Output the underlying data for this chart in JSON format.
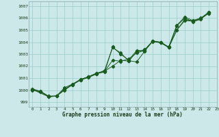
{
  "xlabel": "Graphe pression niveau de la mer (hPa)",
  "bg_color": "#cce8e8",
  "grid_color": "#99cccc",
  "line_color": "#1a5c20",
  "xlim": [
    -0.5,
    23
  ],
  "ylim": [
    998.6,
    1007.4
  ],
  "xticks": [
    0,
    1,
    2,
    3,
    4,
    5,
    6,
    7,
    8,
    9,
    10,
    11,
    12,
    13,
    14,
    15,
    16,
    17,
    18,
    19,
    20,
    21,
    22,
    23
  ],
  "yticks": [
    999,
    1000,
    1001,
    1002,
    1003,
    1004,
    1005,
    1006,
    1007
  ],
  "series1_x": [
    0,
    1,
    2,
    3,
    4,
    5,
    6,
    7,
    8,
    9,
    10,
    11,
    12,
    13,
    14,
    15,
    16,
    17,
    18,
    19,
    20,
    21,
    22
  ],
  "series1_y": [
    1000.1,
    999.9,
    999.5,
    999.5,
    1000.2,
    1000.5,
    1000.9,
    1001.1,
    1001.4,
    1001.5,
    1003.6,
    1003.0,
    1002.5,
    1003.3,
    1003.3,
    1004.1,
    1004.0,
    1003.6,
    1005.4,
    1006.1,
    1005.8,
    1006.0,
    1006.5
  ],
  "series2_x": [
    0,
    1,
    2,
    3,
    4,
    5,
    6,
    7,
    8,
    9,
    10,
    11,
    12,
    13,
    14,
    15,
    16,
    17,
    18,
    19,
    20,
    21,
    22
  ],
  "series2_y": [
    1000.0,
    999.85,
    999.45,
    999.5,
    1000.0,
    1000.45,
    1000.85,
    1001.1,
    1001.35,
    1001.55,
    1002.5,
    1002.4,
    1002.6,
    1003.1,
    1003.3,
    1004.05,
    1003.95,
    1003.55,
    1005.0,
    1005.8,
    1005.75,
    1005.95,
    1006.4
  ],
  "series3_x": [
    0,
    2,
    3,
    4,
    5,
    6,
    7,
    8,
    9,
    10,
    11,
    12,
    13,
    14,
    15,
    16,
    17,
    18,
    19,
    20,
    21,
    22
  ],
  "series3_y": [
    1000.05,
    999.45,
    999.5,
    1000.05,
    1000.45,
    1000.85,
    1001.05,
    1001.35,
    1001.65,
    1003.55,
    1003.1,
    1002.45,
    1002.35,
    1003.25,
    1004.1,
    1003.95,
    1003.55,
    1005.35,
    1006.0,
    1005.7,
    1005.9,
    1006.5
  ],
  "series4_x": [
    0,
    1,
    2,
    3,
    4,
    5,
    6,
    7,
    8,
    9,
    10,
    11,
    12,
    13,
    14,
    15,
    16,
    17,
    18,
    19,
    20,
    21,
    22
  ],
  "series4_y": [
    1000.05,
    999.88,
    999.48,
    999.52,
    1000.08,
    1000.48,
    1000.88,
    1001.12,
    1001.42,
    1001.58,
    1002.0,
    1002.48,
    1002.42,
    1003.18,
    1003.38,
    1004.08,
    1003.98,
    1003.58,
    1005.0,
    1005.88,
    1005.78,
    1005.98,
    1006.48
  ]
}
